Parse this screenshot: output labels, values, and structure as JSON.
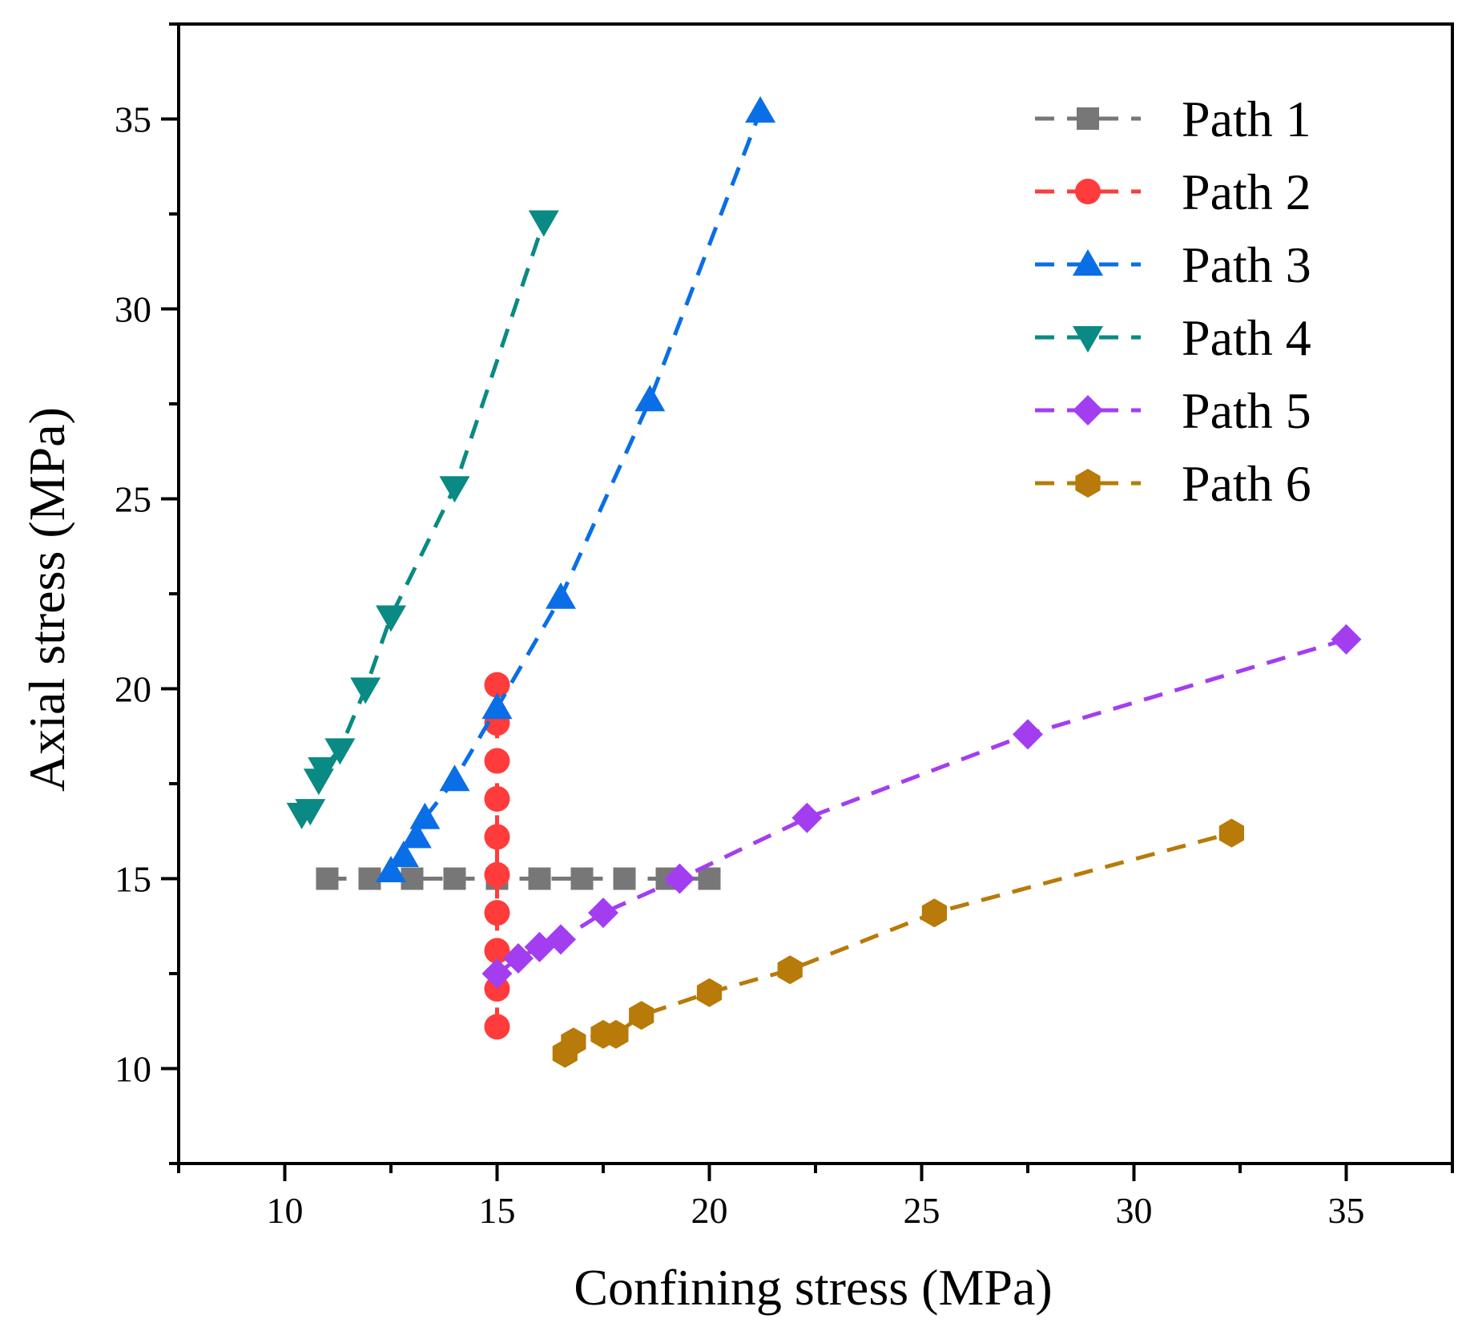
{
  "chart_data": {
    "type": "scatter",
    "xlabel": "Confining stress (MPa)",
    "ylabel": "Axial stress (MPa)",
    "xlim": [
      7.5,
      37.5
    ],
    "ylim": [
      7.5,
      37.5
    ],
    "xticks": [
      10,
      15,
      20,
      25,
      30,
      35
    ],
    "yticks": [
      10,
      15,
      20,
      25,
      30,
      35
    ],
    "legend_position": "top-right",
    "series": [
      {
        "name": "Path 1",
        "color": "#777777",
        "marker": "square",
        "x": [
          11.0,
          12.0,
          13.0,
          14.0,
          15.0,
          16.0,
          17.0,
          18.0,
          19.0,
          20.0
        ],
        "y": [
          15.0,
          15.0,
          15.0,
          15.0,
          15.0,
          15.0,
          15.0,
          15.0,
          15.0,
          15.0
        ]
      },
      {
        "name": "Path 2",
        "color": "#ff3b3b",
        "marker": "circle",
        "x": [
          15.0,
          15.0,
          15.0,
          15.0,
          15.0,
          15.0,
          15.0,
          15.0,
          15.0,
          15.0
        ],
        "y": [
          11.1,
          12.1,
          13.1,
          14.1,
          15.1,
          16.1,
          17.1,
          18.1,
          19.1,
          20.1
        ]
      },
      {
        "name": "Path 3",
        "color": "#0a6ee6",
        "marker": "triangle-up",
        "x": [
          12.5,
          12.8,
          13.1,
          13.3,
          14.0,
          15.0,
          16.5,
          18.6,
          21.2
        ],
        "y": [
          15.2,
          15.6,
          16.1,
          16.6,
          17.6,
          19.5,
          22.4,
          27.6,
          35.2
        ]
      },
      {
        "name": "Path 4",
        "color": "#0a8a84",
        "marker": "triangle-down",
        "x": [
          10.4,
          10.6,
          10.8,
          10.9,
          11.3,
          11.9,
          12.5,
          14.0,
          16.1
        ],
        "y": [
          16.7,
          16.8,
          17.6,
          17.9,
          18.4,
          20.0,
          21.9,
          25.3,
          32.3
        ]
      },
      {
        "name": "Path 5",
        "color": "#a33ef0",
        "marker": "diamond",
        "x": [
          15.0,
          15.5,
          16.0,
          16.5,
          17.5,
          19.3,
          22.3,
          27.5,
          35.0
        ],
        "y": [
          12.5,
          12.9,
          13.2,
          13.4,
          14.1,
          15.0,
          16.6,
          18.8,
          21.3
        ]
      },
      {
        "name": "Path 6",
        "color": "#b87a08",
        "marker": "hexagon",
        "x": [
          16.6,
          16.8,
          17.5,
          17.8,
          18.4,
          20.0,
          21.9,
          25.3,
          32.3
        ],
        "y": [
          10.4,
          10.7,
          10.9,
          10.9,
          11.4,
          12.0,
          12.6,
          14.1,
          16.2
        ]
      }
    ]
  }
}
